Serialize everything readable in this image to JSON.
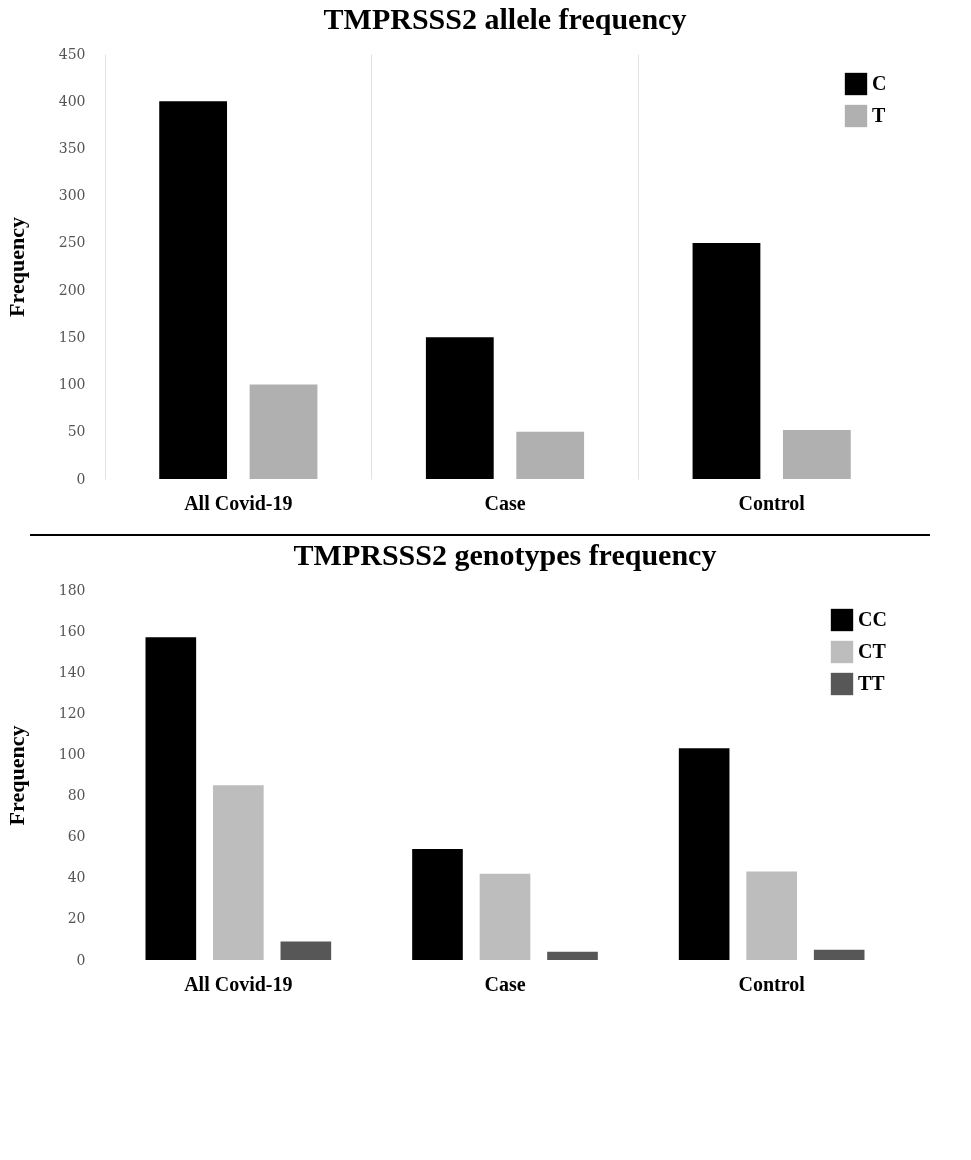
{
  "chart_data": [
    {
      "type": "bar",
      "title": "TMPRSSS2 allele frequency",
      "ylabel": "Frequency",
      "categories": [
        "All Covid-19",
        "Case",
        "Control"
      ],
      "series": [
        {
          "name": "C",
          "color": "#000000",
          "values": [
            400,
            150,
            250
          ]
        },
        {
          "name": "T",
          "color": "#b0b0b0",
          "values": [
            100,
            50,
            52
          ]
        }
      ],
      "ylim": [
        0,
        450
      ],
      "yticks": [
        0,
        50,
        100,
        150,
        200,
        250,
        300,
        350,
        400,
        450
      ],
      "grid": "x",
      "legend": "top right"
    },
    {
      "type": "bar",
      "title": "TMPRSSS2 genotypes frequency",
      "ylabel": "Frequency",
      "categories": [
        "All Covid-19",
        "Case",
        "Control"
      ],
      "series": [
        {
          "name": "CC",
          "color": "#000000",
          "values": [
            157,
            54,
            103
          ]
        },
        {
          "name": "CT",
          "color": "#bdbdbd",
          "values": [
            85,
            42,
            43
          ]
        },
        {
          "name": "TT",
          "color": "#575757",
          "values": [
            9,
            4,
            5
          ]
        }
      ],
      "ylim": [
        0,
        180
      ],
      "yticks": [
        0,
        20,
        40,
        60,
        80,
        100,
        120,
        140,
        160,
        180
      ],
      "legend": "top right"
    }
  ]
}
